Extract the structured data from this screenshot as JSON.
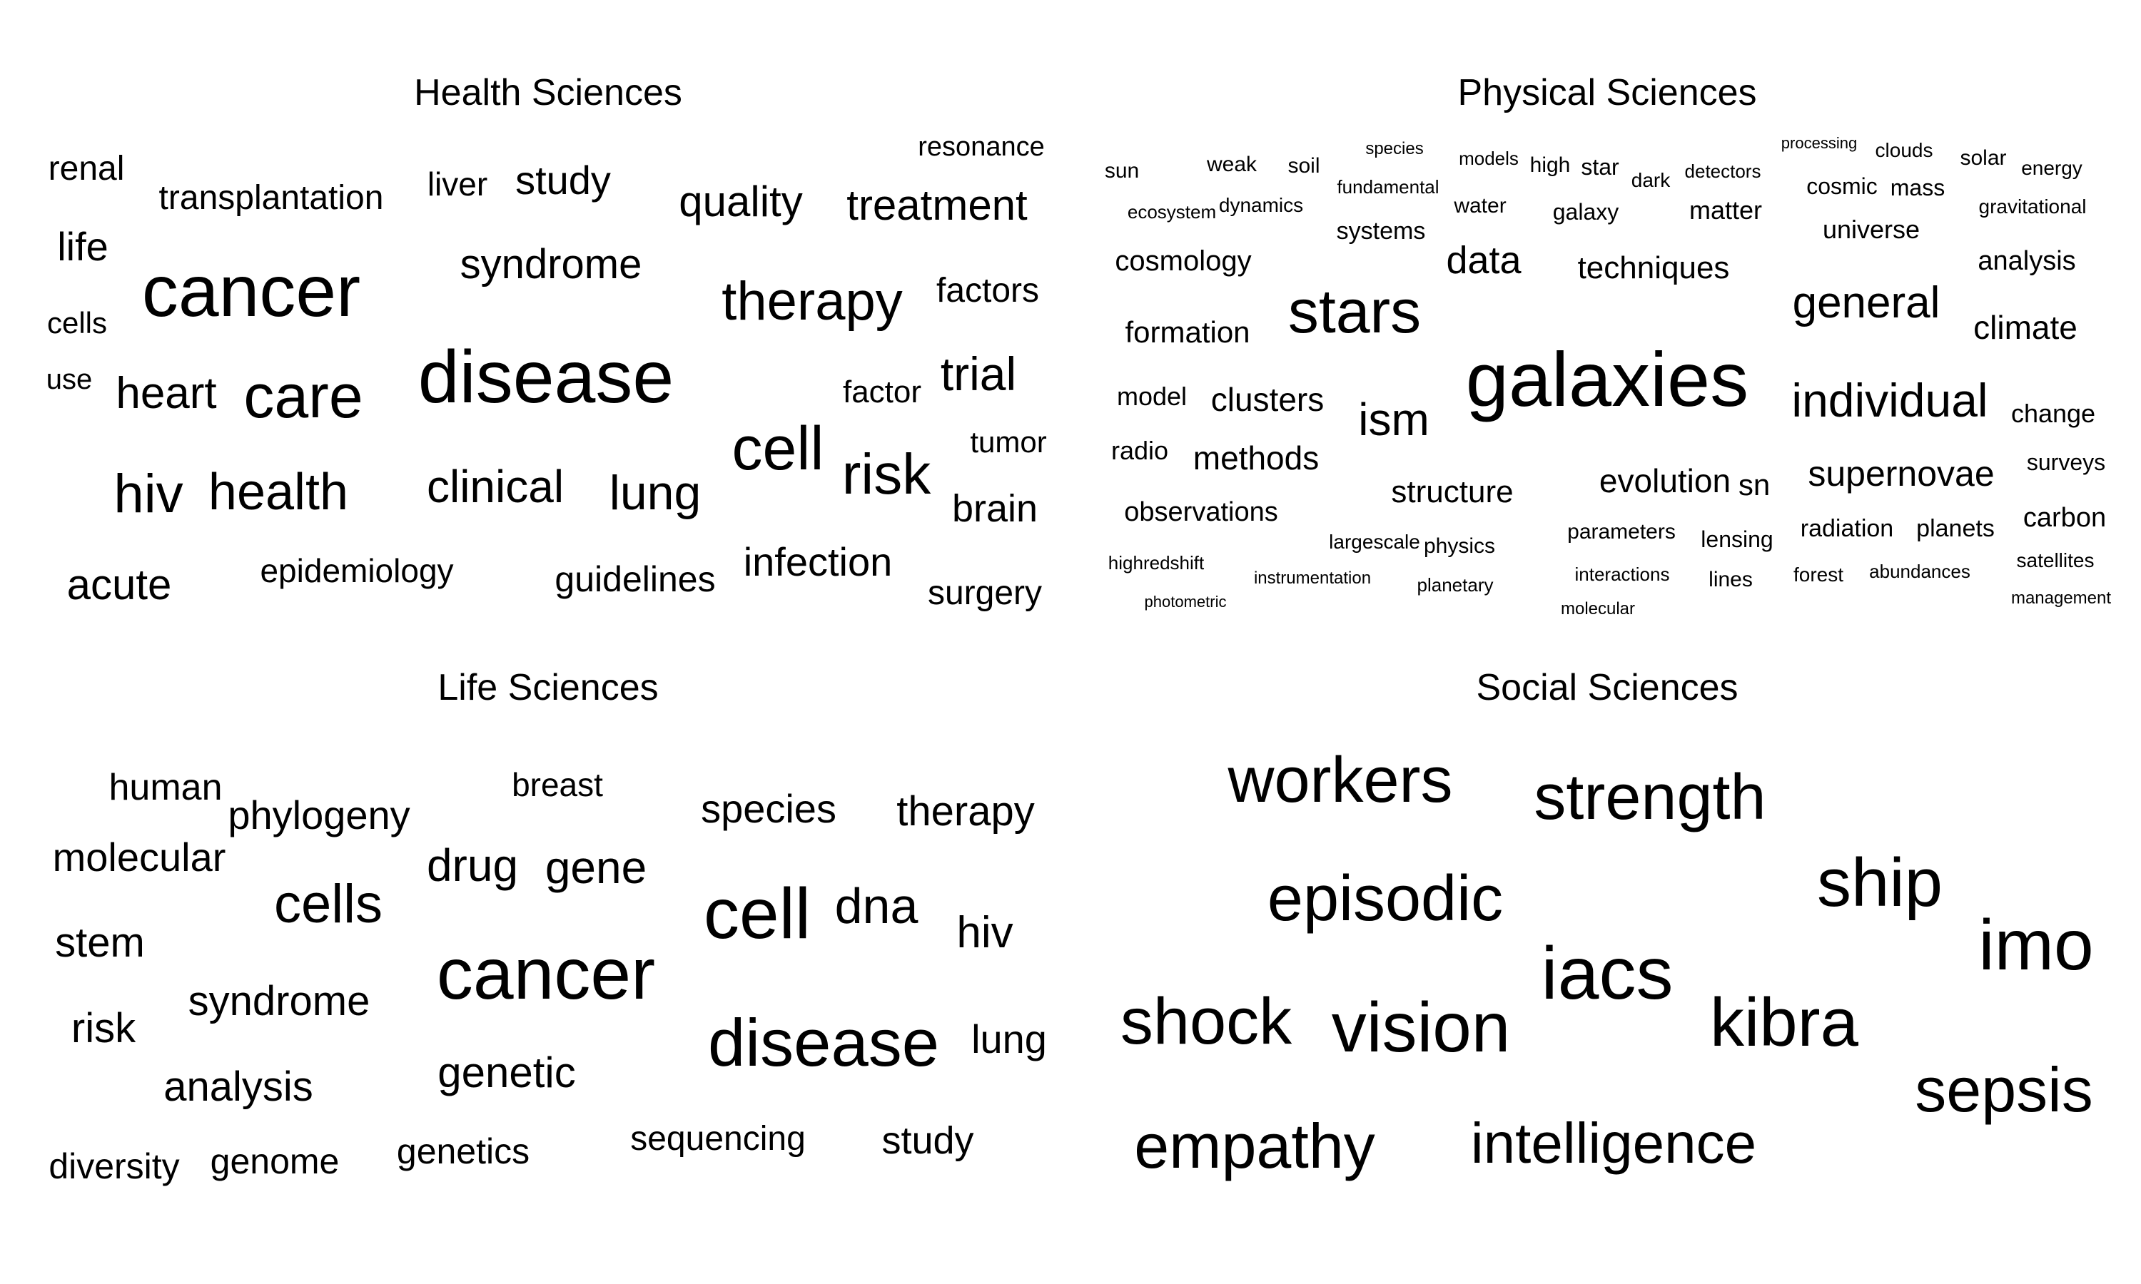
{
  "panels": [
    {
      "title": "Health Sciences",
      "words": [
        "renal",
        "transplantation",
        "liver",
        "study",
        "resonance",
        "quality",
        "treatment",
        "life",
        "cancer",
        "syndrome",
        "therapy",
        "factors",
        "cells",
        "use",
        "heart",
        "care",
        "disease",
        "factor",
        "trial",
        "cell",
        "tumor",
        "risk",
        "brain",
        "hiv",
        "health",
        "clinical",
        "lung",
        "infection",
        "acute",
        "epidemiology",
        "guidelines",
        "surgery"
      ]
    },
    {
      "title": "Physical Sciences",
      "words": [
        "sun",
        "weak",
        "soil",
        "species",
        "models",
        "high",
        "star",
        "dark",
        "detectors",
        "processing",
        "clouds",
        "solar",
        "energy",
        "fundamental",
        "cosmic",
        "mass",
        "ecosystem",
        "dynamics",
        "water",
        "galaxy",
        "matter",
        "gravitational",
        "systems",
        "universe",
        "cosmology",
        "data",
        "techniques",
        "analysis",
        "stars",
        "general",
        "formation",
        "climate",
        "galaxies",
        "individual",
        "model",
        "clusters",
        "ism",
        "change",
        "radio",
        "methods",
        "supernovae",
        "surveys",
        "structure",
        "evolution",
        "sn",
        "observations",
        "carbon",
        "radiation",
        "planets",
        "largescale",
        "physics",
        "parameters",
        "lensing",
        "highredshift",
        "satellites",
        "instrumentation",
        "interactions",
        "forest",
        "abundances",
        "lines",
        "planetary",
        "photometric",
        "management",
        "molecular"
      ]
    },
    {
      "title": "Life Sciences",
      "words": [
        "human",
        "phylogeny",
        "breast",
        "species",
        "therapy",
        "molecular",
        "drug",
        "gene",
        "cells",
        "cell",
        "dna",
        "hiv",
        "stem",
        "cancer",
        "syndrome",
        "risk",
        "disease",
        "lung",
        "analysis",
        "genetic",
        "sequencing",
        "study",
        "diversity",
        "genome",
        "genetics"
      ]
    },
    {
      "title": "Social Sciences",
      "words": [
        "workers",
        "strength",
        "episodic",
        "ship",
        "imo",
        "iacs",
        "shock",
        "vision",
        "kibra",
        "sepsis",
        "empathy",
        "intelligence"
      ]
    }
  ]
}
